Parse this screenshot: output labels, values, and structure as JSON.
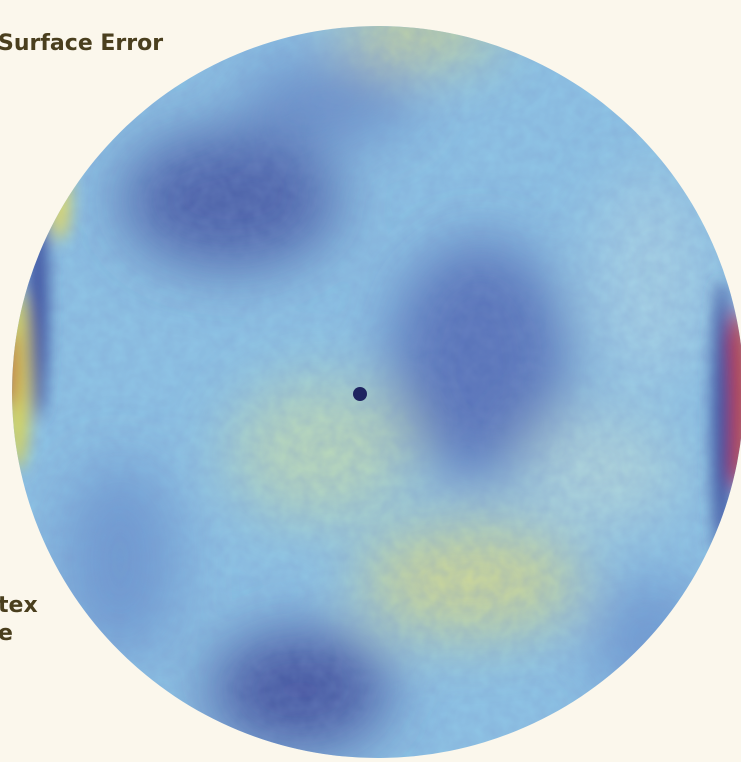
{
  "labels": {
    "title": "Surface Error",
    "fragment_1": "tex",
    "fragment_2": "e"
  }
}
